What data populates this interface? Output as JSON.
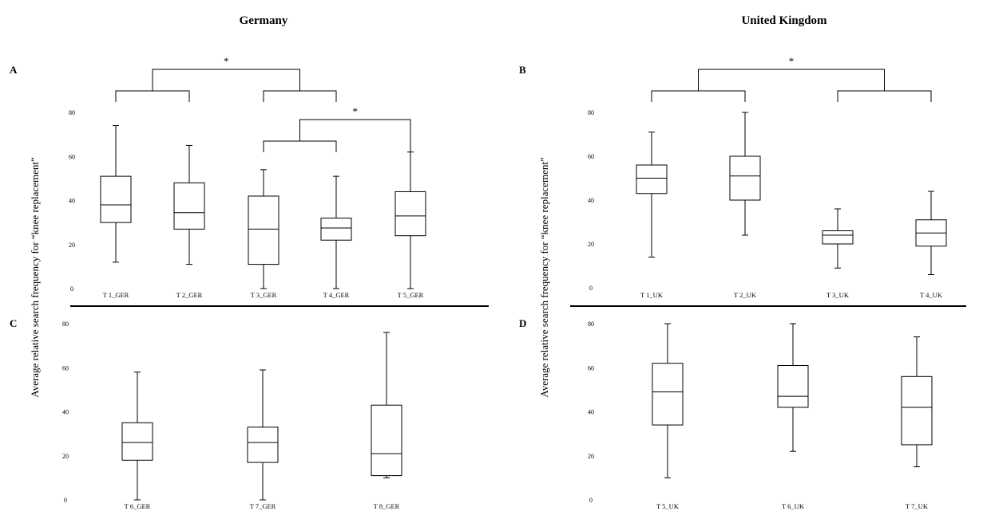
{
  "headings": {
    "left": "Germany",
    "right": "United Kingdom"
  },
  "ylabel": "Average relative search frequency for “knee replacement”",
  "significance_marker": "*",
  "chart_data": [
    {
      "panel": "A",
      "type": "boxplot",
      "ylim": [
        0,
        80
      ],
      "yticks": [
        0,
        20,
        40,
        60,
        80
      ],
      "categories": [
        "T 1_GER",
        "T 2_GER",
        "T 3_GER",
        "T 4_GER",
        "T 5_GER"
      ],
      "boxes": [
        {
          "min": 12,
          "q1": 30,
          "median": 38,
          "q3": 51,
          "max": 74
        },
        {
          "min": 11,
          "q1": 27,
          "median": 34.5,
          "q3": 48,
          "max": 65
        },
        {
          "min": 0,
          "q1": 11,
          "median": 27,
          "q3": 42,
          "max": 54
        },
        {
          "min": 0,
          "q1": 22,
          "median": 27.5,
          "q3": 32,
          "max": 51
        },
        {
          "min": 0,
          "q1": 24,
          "median": 33,
          "q3": 44,
          "max": 62
        }
      ],
      "significance": [
        {
          "groups": [
            [
              0,
              1
            ],
            [
              2,
              3
            ]
          ],
          "label": "*"
        },
        {
          "groups": [
            [
              2,
              3
            ],
            [
              4
            ]
          ],
          "label": "*"
        }
      ]
    },
    {
      "panel": "B",
      "type": "boxplot",
      "ylim": [
        0,
        80
      ],
      "yticks": [
        0,
        20,
        40,
        60,
        80
      ],
      "categories": [
        "T 1_UK",
        "T 2_UK",
        "T 3_UK",
        "T 4_UK"
      ],
      "boxes": [
        {
          "min": 14,
          "q1": 43,
          "median": 50,
          "q3": 56,
          "max": 71
        },
        {
          "min": 24,
          "q1": 40,
          "median": 51,
          "q3": 60,
          "max": 80
        },
        {
          "min": 9,
          "q1": 20,
          "median": 24,
          "q3": 26,
          "max": 36
        },
        {
          "min": 6,
          "q1": 19,
          "median": 25,
          "q3": 31,
          "max": 44
        }
      ],
      "significance": [
        {
          "groups": [
            [
              0,
              1
            ],
            [
              2,
              3
            ]
          ],
          "label": "*"
        }
      ]
    },
    {
      "panel": "C",
      "type": "boxplot",
      "ylim": [
        0,
        80
      ],
      "yticks": [
        0,
        20,
        40,
        60,
        80
      ],
      "categories": [
        "T 6_GER",
        "T 7_GER",
        "T 8_GER"
      ],
      "boxes": [
        {
          "min": 0,
          "q1": 18,
          "median": 26,
          "q3": 35,
          "max": 58
        },
        {
          "min": 0,
          "q1": 17,
          "median": 26,
          "q3": 33,
          "max": 59
        },
        {
          "min": 10,
          "q1": 11,
          "median": 21,
          "q3": 43,
          "max": 76
        }
      ],
      "significance": []
    },
    {
      "panel": "D",
      "type": "boxplot",
      "ylim": [
        0,
        80
      ],
      "yticks": [
        0,
        20,
        40,
        60,
        80
      ],
      "categories": [
        "T 5_UK",
        "T 6_UK",
        "T 7_UK"
      ],
      "boxes": [
        {
          "min": 10,
          "q1": 34,
          "median": 49,
          "q3": 62,
          "max": 80
        },
        {
          "min": 22,
          "q1": 42,
          "median": 47,
          "q3": 61,
          "max": 80
        },
        {
          "min": 15,
          "q1": 25,
          "median": 42,
          "q3": 56,
          "max": 74
        }
      ],
      "significance": []
    }
  ]
}
